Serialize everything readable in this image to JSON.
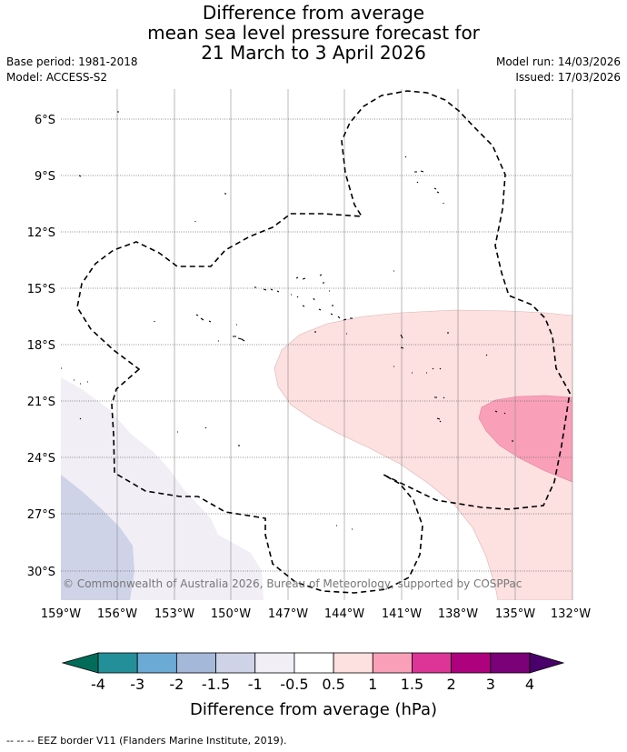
{
  "title": {
    "line1": "Difference from average",
    "line2": "mean sea level pressure forecast for",
    "line3": "21 March to 3 April 2026"
  },
  "meta": {
    "base_period": "Base period: 1981-2018",
    "model": "Model: ACCESS-S2",
    "model_run": "Model run: 14/03/2026",
    "issued": "Issued: 17/03/2026"
  },
  "map": {
    "lat_labels": [
      "6°S",
      "9°S",
      "12°S",
      "15°S",
      "18°S",
      "21°S",
      "24°S",
      "27°S",
      "30°S"
    ],
    "lon_labels": [
      "159°W",
      "156°W",
      "153°W",
      "150°W",
      "147°W",
      "144°W",
      "141°W",
      "138°W",
      "135°W",
      "132°W"
    ],
    "credit": "© Commonwealth of Australia 2026, Bureau of Meteorology, supported by COSPPac"
  },
  "colorbar": {
    "ticks": [
      "-4",
      "-3",
      "-2",
      "-1.5",
      "-1",
      "-0.5",
      "0.5",
      "1",
      "1.5",
      "2",
      "3",
      "4"
    ],
    "colors": [
      "#238f98",
      "#6aaad4",
      "#a4b8da",
      "#ced3e7",
      "#f1eef6",
      "#ffffff",
      "#fde0e0",
      "#f9a0b8",
      "#dd3497",
      "#ae017e",
      "#7a0177"
    ],
    "low_extend_color": "#016c59",
    "high_extend_color": "#49006a",
    "label": "Difference from average (hPa)"
  },
  "footer": "--  --  -- EEZ border V11 (Flanders Marine Institute, 2019)."
}
